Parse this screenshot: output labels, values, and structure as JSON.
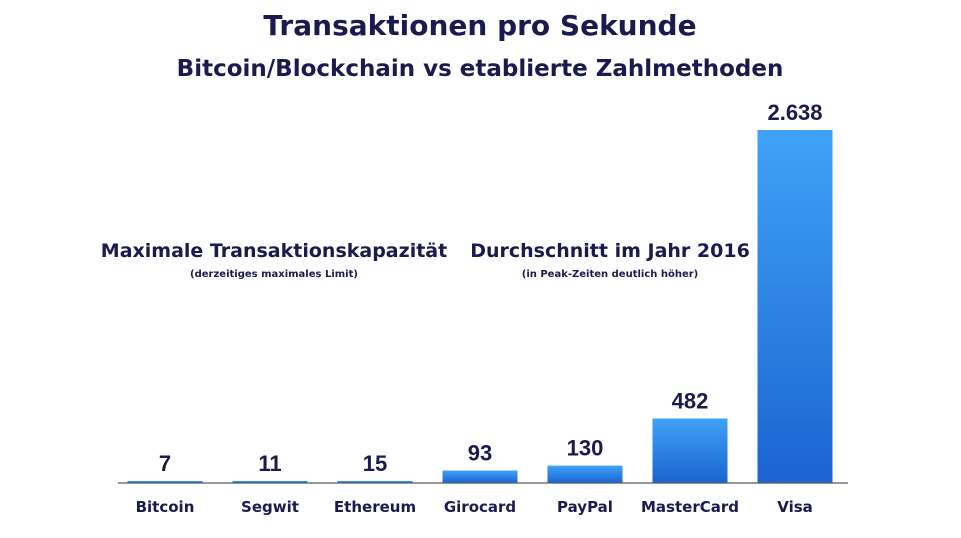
{
  "chart_data": {
    "type": "bar",
    "title": "Transaktionen pro Sekunde",
    "subtitle": "Bitcoin/Blockchain vs etablierte Zahlmethoden",
    "categories": [
      "Bitcoin",
      "Segwit",
      "Ethereum",
      "Girocard",
      "PayPal",
      "MasterCard",
      "Visa"
    ],
    "values": [
      7,
      11,
      15,
      93,
      130,
      482,
      2638
    ],
    "value_labels": [
      "7",
      "11",
      "15",
      "93",
      "130",
      "482",
      "2.638"
    ],
    "ylim": [
      0,
      2638
    ],
    "grid": false,
    "bar_color": "#2f86e8",
    "annotations": [
      {
        "text": "Maximale Transaktionskapazität",
        "subtext": "(derzeitiges maximales Limit)"
      },
      {
        "text": "Durchschnitt im Jahr 2016",
        "subtext": "(in Peak-Zeiten deutlich höher)"
      }
    ]
  }
}
